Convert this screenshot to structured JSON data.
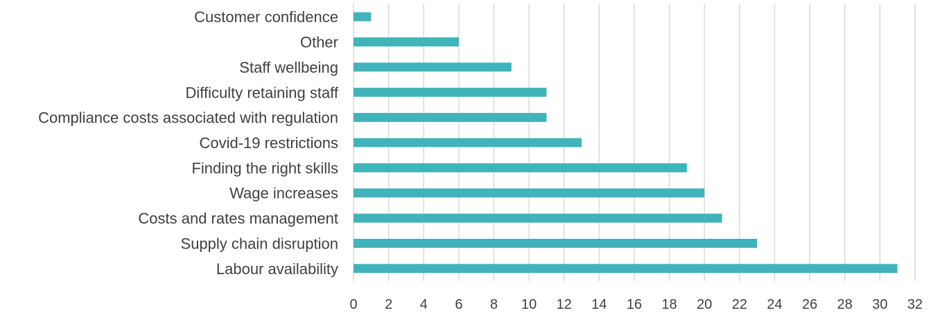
{
  "chart_data": {
    "type": "bar",
    "orientation": "horizontal",
    "categories": [
      "Customer confidence",
      "Other",
      "Staff wellbeing",
      "Difficulty retaining staff",
      "Compliance costs associated with regulation",
      "Covid-19 restrictions",
      "Finding the right skills",
      "Wage increases",
      "Costs and rates management",
      "Supply chain disruption",
      "Labour availability"
    ],
    "values": [
      1,
      6,
      9,
      11,
      11,
      13,
      19,
      20,
      21,
      23,
      31
    ],
    "xlim": [
      0,
      32
    ],
    "xticks": [
      0,
      2,
      4,
      6,
      8,
      10,
      12,
      14,
      16,
      18,
      20,
      22,
      24,
      26,
      28,
      30,
      32
    ],
    "grid": true,
    "legend": "none",
    "bar_color": "#41b3bb"
  }
}
